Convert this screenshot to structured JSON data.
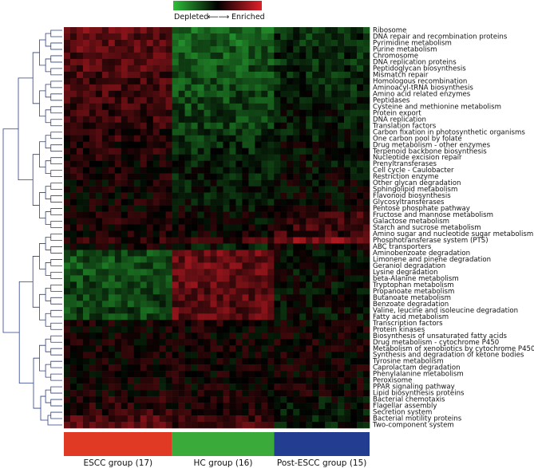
{
  "chart_data": {
    "type": "heatmap",
    "title": "",
    "legend": {
      "low_label": "Depleted",
      "high_label": "Enriched",
      "arrow_text": "⟵⟶",
      "colors": {
        "low": "#2fbf3a",
        "mid": "#000000",
        "high": "#e0202a"
      }
    },
    "rows": [
      "Ribosome",
      "DNA repair and recombination proteins",
      "Pyrimidine metabolism",
      "Purine metabolism",
      "Chromosome",
      "DNA replication proteins",
      "Peptidoglycan biosynthesis",
      "Mismatch repair",
      "Homologous recombination",
      "Aminoacyl-tRNA biosynthesis",
      "Amino acid related enzymes",
      "Peptidases",
      "Cysteine and methionine metabolism",
      "Protein export",
      "DNA replication",
      "Translation factors",
      "Carbon fixation in photosynthetic organisms",
      "One carbon pool by folate",
      "Drug metabolism - other enzymes",
      "Terpenoid backbone biosynthesis",
      "Nucleotide excision repair",
      "Prenyltransferases",
      "Cell cycle - Caulobacter",
      "Restriction enzyme",
      "Other glycan degradation",
      "Sphingolipid metabolism",
      "Flavonoid biosynthesis",
      "Glycosyltransferases",
      "Pentose phosphate pathway",
      "Fructose and mannose metabolism",
      "Galactose metabolism",
      "Starch and sucrose metabolism",
      "Amino sugar and nucleotide sugar metabolism",
      "Phosphotransferase system (PTS)",
      "ABC transporters",
      "Aminobenzoate degradation",
      "Limonene and pinene degradation",
      "Geraniol degradation",
      "Lysine degradation",
      "beta-Alanine metabolism",
      "Tryptophan metabolism",
      "Propanoate metabolism",
      "Butanoate metabolism",
      "Benzoate degradation",
      "Valine, leucine and isoleucine degradation",
      "Fatty acid metabolism",
      "Transcription factors",
      "Protein kinases",
      "Biosynthesis of unsaturated fatty acids",
      "Drug metabolism - cytochrome P450",
      "Metabolism of xenobiotics by cytochrome P450",
      "Synthesis and degradation of ketone bodies",
      "Tyrosine metabolism",
      "Caprolactam degradation",
      "Phenylalanine metabolism",
      "Peroxisome",
      "PPAR signaling pathway",
      "Lipid biosynthesis proteins",
      "Bacterial chemotaxis",
      "Flagellar assembly",
      "Secretion system",
      "Bacterial motility proteins",
      "Two-component system"
    ],
    "groups": [
      {
        "label": "ESCC group (17)",
        "n": 17,
        "color": "#e03a24"
      },
      {
        "label": "HC group (16)",
        "n": 16,
        "color": "#3aaa3a"
      },
      {
        "label": "Post-ESCC group (15)",
        "n": 15,
        "color": "#233d91"
      }
    ],
    "row_group_pattern": [
      [
        0.45,
        -0.55,
        -0.3
      ],
      [
        0.4,
        -0.5,
        -0.25
      ],
      [
        0.4,
        -0.5,
        -0.25
      ],
      [
        0.4,
        -0.45,
        -0.2
      ],
      [
        0.35,
        -0.45,
        -0.2
      ],
      [
        0.35,
        -0.45,
        -0.25
      ],
      [
        0.35,
        -0.4,
        -0.2
      ],
      [
        0.3,
        -0.4,
        -0.2
      ],
      [
        0.3,
        -0.4,
        -0.2
      ],
      [
        0.3,
        -0.4,
        -0.2
      ],
      [
        0.3,
        -0.35,
        -0.15
      ],
      [
        0.3,
        -0.35,
        -0.15
      ],
      [
        0.25,
        -0.35,
        -0.15
      ],
      [
        0.25,
        -0.3,
        -0.1
      ],
      [
        0.25,
        -0.3,
        -0.1
      ],
      [
        0.2,
        -0.3,
        -0.1
      ],
      [
        0.2,
        -0.25,
        -0.1
      ],
      [
        0.2,
        -0.25,
        -0.1
      ],
      [
        0.15,
        -0.2,
        -0.05
      ],
      [
        0.15,
        -0.2,
        -0.05
      ],
      [
        0.15,
        -0.2,
        -0.05
      ],
      [
        0.1,
        -0.15,
        -0.05
      ],
      [
        0.1,
        -0.15,
        -0.05
      ],
      [
        0.1,
        -0.15,
        0.0
      ],
      [
        0.05,
        -0.1,
        0.0
      ],
      [
        0.05,
        -0.1,
        0.0
      ],
      [
        0.05,
        -0.1,
        0.0
      ],
      [
        0.05,
        -0.1,
        0.0
      ],
      [
        0.05,
        -0.05,
        0.05
      ],
      [
        0.1,
        0.0,
        0.25
      ],
      [
        0.1,
        0.0,
        0.25
      ],
      [
        0.1,
        0.05,
        0.25
      ],
      [
        0.1,
        0.05,
        0.25
      ],
      [
        0.15,
        0.25,
        0.55
      ],
      [
        0.05,
        -0.1,
        0.05
      ],
      [
        -0.4,
        0.45,
        -0.05
      ],
      [
        -0.4,
        0.45,
        -0.05
      ],
      [
        -0.4,
        0.45,
        -0.05
      ],
      [
        -0.4,
        0.45,
        -0.05
      ],
      [
        -0.35,
        0.45,
        -0.05
      ],
      [
        -0.35,
        0.45,
        -0.05
      ],
      [
        -0.35,
        0.4,
        -0.05
      ],
      [
        -0.35,
        0.4,
        -0.05
      ],
      [
        -0.35,
        0.4,
        -0.05
      ],
      [
        -0.35,
        0.4,
        -0.05
      ],
      [
        -0.35,
        0.4,
        -0.05
      ],
      [
        0.05,
        0.1,
        0.05
      ],
      [
        0.05,
        0.05,
        0.05
      ],
      [
        0.05,
        0.05,
        0.05
      ],
      [
        0.05,
        0.05,
        0.05
      ],
      [
        0.05,
        0.05,
        0.05
      ],
      [
        0.05,
        0.05,
        0.05
      ],
      [
        0.05,
        0.05,
        0.05
      ],
      [
        0.05,
        0.05,
        0.05
      ],
      [
        0.05,
        0.05,
        0.05
      ],
      [
        0.05,
        0.05,
        0.05
      ],
      [
        0.05,
        0.05,
        0.05
      ],
      [
        0.05,
        0.05,
        0.05
      ],
      [
        0.15,
        0.15,
        -0.05
      ],
      [
        0.15,
        0.15,
        -0.05
      ],
      [
        0.2,
        0.1,
        -0.1
      ],
      [
        0.35,
        0.3,
        -0.1
      ],
      [
        0.35,
        0.3,
        -0.1
      ]
    ],
    "value_range": [
      -1,
      1
    ],
    "dendrogram": "rows"
  }
}
